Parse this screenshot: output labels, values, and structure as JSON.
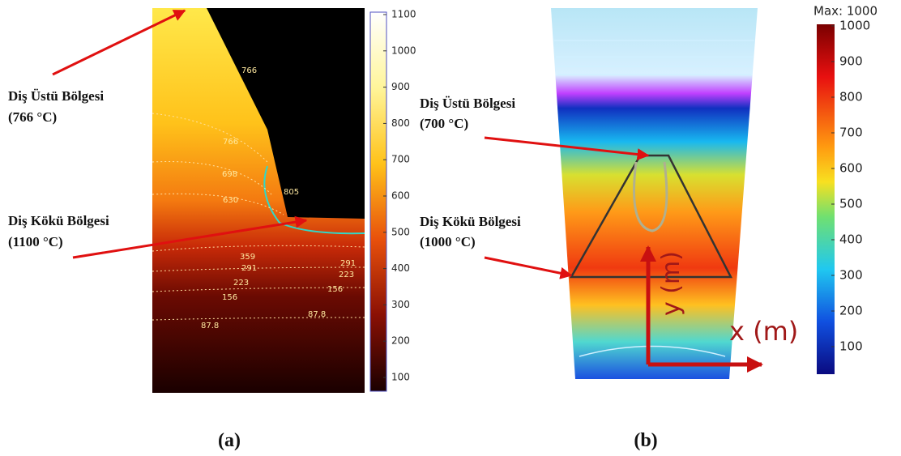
{
  "panels": [
    {
      "label": "(a)",
      "annotations": [
        {
          "title": "Diş Üstü Bölgesi",
          "value": "(766 °C)"
        },
        {
          "title": "Diş Kökü Bölgesi",
          "value": "(1100 °C)"
        }
      ],
      "colorbar": {
        "ticks": [
          1100,
          1000,
          900,
          800,
          700,
          600,
          500,
          400,
          300,
          200,
          100
        ]
      },
      "contour_labels": [
        "766",
        "766",
        "698",
        "630",
        "805",
        "291",
        "223",
        "156",
        "87.8",
        "87.8",
        "359",
        "291",
        "223",
        "156"
      ]
    },
    {
      "label": "(b)",
      "annotations": [
        {
          "title": "Diş Üstü Bölgesi",
          "value": "(700 °C)"
        },
        {
          "title": "Diş Kökü Bölgesi",
          "value": "(1000 °C)"
        }
      ],
      "colorbar": {
        "title": "Max: 1000",
        "ticks": [
          1000,
          900,
          800,
          700,
          600,
          500,
          400,
          300,
          200,
          100
        ]
      },
      "axis_labels": {
        "x": "x (m)",
        "y": "y (m)"
      }
    }
  ]
}
